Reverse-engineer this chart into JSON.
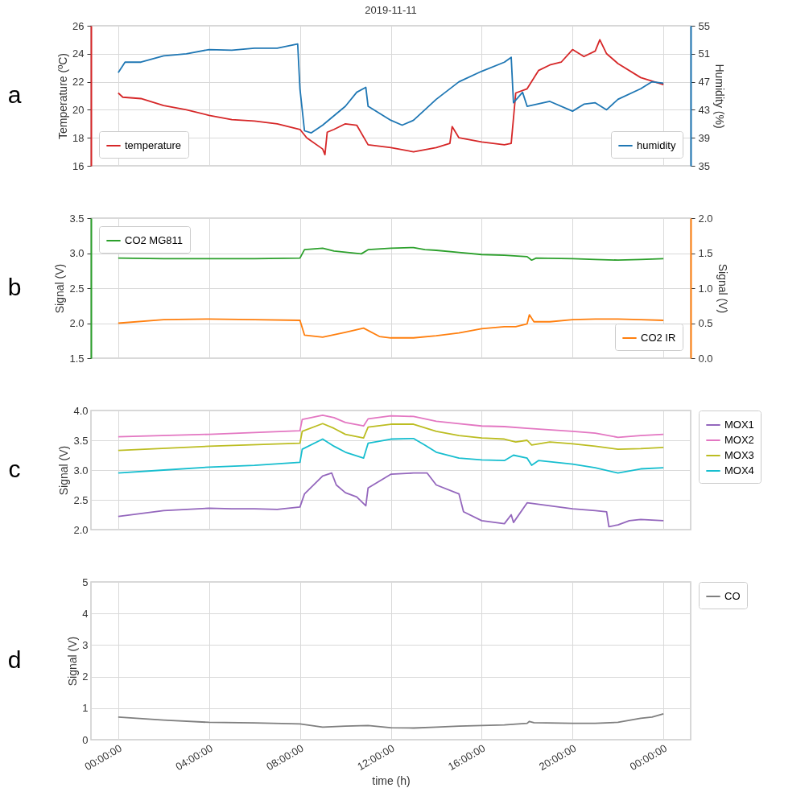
{
  "chart_data": [
    {
      "type": "line",
      "title": "2019-11-11",
      "ylabel": "Temperature (ºC)",
      "y2label": "Humidity (%)",
      "annotations": [
        "a"
      ],
      "grid": true,
      "tick_labels": "y",
      "legend": "bottom",
      "xlim": [
        "2019-11-10T22:48",
        "2019-11-12T01:12"
      ],
      "xticks": [
        "2019-11-11T00:00",
        "2019-11-11T04:00",
        "2019-11-11T08:00",
        "2019-11-11T12:00",
        "2019-11-11T16:00",
        "2019-11-11T20:00",
        "2019-11-12T00:00"
      ],
      "ylim": [
        16,
        26
      ],
      "yticks": [
        16,
        18,
        20,
        22,
        24,
        26
      ],
      "y2lim": [
        35,
        55
      ],
      "y2ticks": [
        35,
        39,
        43,
        47,
        51,
        55
      ],
      "series": [
        {
          "name": "temperature",
          "color": "#d62728",
          "x": [
            "2019-11-11T00:00",
            "2019-11-11T00:12",
            "2019-11-11T01:00",
            "2019-11-11T02:00",
            "2019-11-11T03:00",
            "2019-11-11T04:00",
            "2019-11-11T05:00",
            "2019-11-11T06:00",
            "2019-11-11T07:00",
            "2019-11-11T08:00",
            "2019-11-11T08:18",
            "2019-11-11T09:00",
            "2019-11-11T09:06",
            "2019-11-11T09:12",
            "2019-11-11T09:30",
            "2019-11-11T10:00",
            "2019-11-11T10:30",
            "2019-11-11T11:00",
            "2019-11-11T12:00",
            "2019-11-11T13:00",
            "2019-11-11T14:00",
            "2019-11-11T14:36",
            "2019-11-11T14:42",
            "2019-11-11T15:00",
            "2019-11-11T16:00",
            "2019-11-11T17:00",
            "2019-11-11T17:18",
            "2019-11-11T17:30",
            "2019-11-11T18:00",
            "2019-11-11T18:30",
            "2019-11-11T19:00",
            "2019-11-11T19:30",
            "2019-11-11T20:00",
            "2019-11-11T20:30",
            "2019-11-11T21:00",
            "2019-11-11T21:12",
            "2019-11-11T21:30",
            "2019-11-11T22:00",
            "2019-11-11T23:00",
            "2019-11-12T00:00"
          ],
          "values": [
            21.2,
            20.9,
            20.8,
            20.3,
            20.0,
            19.6,
            19.3,
            19.2,
            19.0,
            18.6,
            18.0,
            17.2,
            16.8,
            18.4,
            18.6,
            19.0,
            18.9,
            17.5,
            17.3,
            17.0,
            17.3,
            17.6,
            18.8,
            18.0,
            17.7,
            17.5,
            17.6,
            21.2,
            21.5,
            22.8,
            23.2,
            23.4,
            24.3,
            23.8,
            24.2,
            25.0,
            24.0,
            23.3,
            22.3,
            21.8
          ]
        },
        {
          "name": "humidity",
          "color": "#1f77b4",
          "axis": "y2",
          "x": [
            "2019-11-11T00:00",
            "2019-11-11T00:18",
            "2019-11-11T01:00",
            "2019-11-11T02:00",
            "2019-11-11T03:00",
            "2019-11-11T04:00",
            "2019-11-11T05:00",
            "2019-11-11T06:00",
            "2019-11-11T07:00",
            "2019-11-11T07:54",
            "2019-11-11T08:00",
            "2019-11-11T08:12",
            "2019-11-11T08:30",
            "2019-11-11T09:00",
            "2019-11-11T10:00",
            "2019-11-11T10:30",
            "2019-11-11T10:54",
            "2019-11-11T11:00",
            "2019-11-11T12:00",
            "2019-11-11T12:30",
            "2019-11-11T13:00",
            "2019-11-11T14:00",
            "2019-11-11T15:00",
            "2019-11-11T16:00",
            "2019-11-11T17:00",
            "2019-11-11T17:18",
            "2019-11-11T17:24",
            "2019-11-11T17:48",
            "2019-11-11T18:00",
            "2019-11-11T19:00",
            "2019-11-11T20:00",
            "2019-11-11T20:30",
            "2019-11-11T21:00",
            "2019-11-11T21:30",
            "2019-11-11T22:00",
            "2019-11-11T23:00",
            "2019-11-11T23:30",
            "2019-11-12T00:00"
          ],
          "values": [
            48.3,
            49.8,
            49.8,
            50.7,
            51.0,
            51.6,
            51.5,
            51.8,
            51.8,
            52.4,
            46,
            40,
            39.7,
            40.8,
            43.5,
            45.5,
            46.2,
            43.5,
            41.5,
            40.8,
            41.5,
            44.5,
            47.0,
            48.5,
            49.8,
            50.5,
            44,
            45.5,
            43.5,
            44.2,
            42.8,
            43.8,
            44.0,
            43.0,
            44.5,
            46.0,
            47.0,
            46.8
          ]
        }
      ]
    },
    {
      "type": "line",
      "ylabel": "Signal (V)",
      "y2label": "Signal (V)",
      "annotations": [
        "b"
      ],
      "grid": true,
      "tick_labels": "y",
      "legend": "left",
      "xlim": [
        "2019-11-10T22:48",
        "2019-11-12T01:12"
      ],
      "xticks": [
        "2019-11-11T00:00",
        "2019-11-11T04:00",
        "2019-11-11T08:00",
        "2019-11-11T12:00",
        "2019-11-11T16:00",
        "2019-11-11T20:00",
        "2019-11-12T00:00"
      ],
      "ylim": [
        1.5,
        3.5
      ],
      "yticks": [
        1.5,
        {
          "value": 2,
          "label": "2.0"
        },
        2.5,
        {
          "value": 3,
          "label": "3.0"
        },
        3.5
      ],
      "y2lim": [
        0,
        2
      ],
      "y2ticks": [
        {
          "value": 0,
          "label": "0.0"
        },
        0.5,
        {
          "value": 1,
          "label": "1.0"
        },
        1.5,
        {
          "value": 2,
          "label": "2.0"
        }
      ],
      "series": [
        {
          "name": "CO2 MG811",
          "color": "#2ca02c",
          "x": [
            "2019-11-11T00:00",
            "2019-11-11T02:00",
            "2019-11-11T04:00",
            "2019-11-11T06:00",
            "2019-11-11T08:00",
            "2019-11-11T08:12",
            "2019-11-11T09:00",
            "2019-11-11T09:30",
            "2019-11-11T10:42",
            "2019-11-11T11:00",
            "2019-11-11T12:00",
            "2019-11-11T13:00",
            "2019-11-11T13:30",
            "2019-11-11T14:00",
            "2019-11-11T15:00",
            "2019-11-11T16:00",
            "2019-11-11T17:00",
            "2019-11-11T18:00",
            "2019-11-11T18:12",
            "2019-11-11T18:24",
            "2019-11-11T20:00",
            "2019-11-11T21:00",
            "2019-11-11T22:00",
            "2019-11-11T23:00",
            "2019-11-12T00:00"
          ],
          "values": [
            2.93,
            2.92,
            2.92,
            2.92,
            2.93,
            3.05,
            3.07,
            3.03,
            2.99,
            3.05,
            3.07,
            3.08,
            3.05,
            3.04,
            3.01,
            2.98,
            2.97,
            2.95,
            2.9,
            2.93,
            2.92,
            2.91,
            2.9,
            2.91,
            2.92
          ]
        },
        {
          "name": "CO2 IR",
          "color": "#ff7f0e",
          "axis": "y2",
          "x": [
            "2019-11-11T00:00",
            "2019-11-11T02:00",
            "2019-11-11T04:00",
            "2019-11-11T06:00",
            "2019-11-11T08:00",
            "2019-11-11T08:12",
            "2019-11-11T09:00",
            "2019-11-11T10:00",
            "2019-11-11T10:48",
            "2019-11-11T11:30",
            "2019-11-11T12:00",
            "2019-11-11T13:00",
            "2019-11-11T14:00",
            "2019-11-11T15:00",
            "2019-11-11T16:00",
            "2019-11-11T17:00",
            "2019-11-11T17:30",
            "2019-11-11T18:00",
            "2019-11-11T18:06",
            "2019-11-11T18:18",
            "2019-11-11T19:00",
            "2019-11-11T20:00",
            "2019-11-11T21:00",
            "2019-11-11T22:00",
            "2019-11-11T23:00",
            "2019-11-12T00:00"
          ],
          "values": [
            0.5,
            0.55,
            0.56,
            0.55,
            0.54,
            0.33,
            0.3,
            0.37,
            0.43,
            0.31,
            0.29,
            0.29,
            0.32,
            0.36,
            0.42,
            0.45,
            0.45,
            0.49,
            0.62,
            0.52,
            0.52,
            0.55,
            0.56,
            0.56,
            0.55,
            0.54
          ]
        }
      ]
    },
    {
      "type": "line",
      "ylabel": "Signal (V)",
      "annotations": [
        "c"
      ],
      "grid": true,
      "tick_labels": "y",
      "legend": "right",
      "xlim": [
        "2019-11-10T22:48",
        "2019-11-12T01:12"
      ],
      "xticks": [
        "2019-11-11T00:00",
        "2019-11-11T04:00",
        "2019-11-11T08:00",
        "2019-11-11T12:00",
        "2019-11-11T16:00",
        "2019-11-11T20:00",
        "2019-11-12T00:00"
      ],
      "ylim": [
        2,
        4
      ],
      "yticks": [
        {
          "value": 2,
          "label": "2.0"
        },
        2.5,
        {
          "value": 3,
          "label": "3.0"
        },
        3.5,
        {
          "value": 4,
          "label": "4.0"
        }
      ],
      "series": [
        {
          "name": "MOX1",
          "color": "#9467bd",
          "x": [
            "2019-11-11T00:00",
            "2019-11-11T02:00",
            "2019-11-11T04:00",
            "2019-11-11T05:00",
            "2019-11-11T06:00",
            "2019-11-11T07:00",
            "2019-11-11T08:00",
            "2019-11-11T08:12",
            "2019-11-11T09:00",
            "2019-11-11T09:24",
            "2019-11-11T09:36",
            "2019-11-11T10:00",
            "2019-11-11T10:30",
            "2019-11-11T10:54",
            "2019-11-11T11:00",
            "2019-11-11T12:00",
            "2019-11-11T13:00",
            "2019-11-11T13:36",
            "2019-11-11T14:00",
            "2019-11-11T15:00",
            "2019-11-11T15:12",
            "2019-11-11T16:00",
            "2019-11-11T17:00",
            "2019-11-11T17:18",
            "2019-11-11T17:24",
            "2019-11-11T18:00",
            "2019-11-11T19:00",
            "2019-11-11T20:00",
            "2019-11-11T21:00",
            "2019-11-11T21:30",
            "2019-11-11T21:36",
            "2019-11-11T22:00",
            "2019-11-11T22:30",
            "2019-11-11T23:00",
            "2019-11-12T00:00"
          ],
          "values": [
            2.22,
            2.32,
            2.36,
            2.35,
            2.35,
            2.34,
            2.38,
            2.6,
            2.9,
            2.95,
            2.75,
            2.62,
            2.55,
            2.4,
            2.7,
            2.93,
            2.95,
            2.95,
            2.75,
            2.6,
            2.3,
            2.15,
            2.1,
            2.25,
            2.12,
            2.45,
            2.4,
            2.35,
            2.32,
            2.3,
            2.05,
            2.08,
            2.15,
            2.17,
            2.15
          ]
        },
        {
          "name": "MOX2",
          "color": "#e377c2",
          "x": [
            "2019-11-11T00:00",
            "2019-11-11T04:00",
            "2019-11-11T08:00",
            "2019-11-11T08:06",
            "2019-11-11T09:00",
            "2019-11-11T09:30",
            "2019-11-11T10:00",
            "2019-11-11T10:48",
            "2019-11-11T11:00",
            "2019-11-11T12:00",
            "2019-11-11T13:00",
            "2019-11-11T14:00",
            "2019-11-11T15:00",
            "2019-11-11T16:00",
            "2019-11-11T17:00",
            "2019-11-11T18:00",
            "2019-11-11T20:00",
            "2019-11-11T21:00",
            "2019-11-11T22:00",
            "2019-11-11T23:00",
            "2019-11-12T00:00"
          ],
          "values": [
            3.56,
            3.6,
            3.66,
            3.85,
            3.92,
            3.88,
            3.8,
            3.74,
            3.86,
            3.91,
            3.9,
            3.82,
            3.78,
            3.74,
            3.73,
            3.7,
            3.65,
            3.62,
            3.55,
            3.58,
            3.6
          ]
        },
        {
          "name": "MOX3",
          "color": "#bcbd22",
          "x": [
            "2019-11-11T00:00",
            "2019-11-11T04:00",
            "2019-11-11T08:00",
            "2019-11-11T08:06",
            "2019-11-11T09:00",
            "2019-11-11T09:30",
            "2019-11-11T10:00",
            "2019-11-11T10:48",
            "2019-11-11T11:00",
            "2019-11-11T12:00",
            "2019-11-11T13:00",
            "2019-11-11T14:00",
            "2019-11-11T15:00",
            "2019-11-11T16:00",
            "2019-11-11T17:00",
            "2019-11-11T17:30",
            "2019-11-11T18:00",
            "2019-11-11T18:12",
            "2019-11-11T19:00",
            "2019-11-11T20:00",
            "2019-11-11T21:00",
            "2019-11-11T22:00",
            "2019-11-11T23:00",
            "2019-11-12T00:00"
          ],
          "values": [
            3.33,
            3.4,
            3.45,
            3.65,
            3.78,
            3.7,
            3.6,
            3.54,
            3.72,
            3.77,
            3.77,
            3.65,
            3.58,
            3.54,
            3.52,
            3.47,
            3.5,
            3.42,
            3.47,
            3.44,
            3.4,
            3.35,
            3.36,
            3.38
          ]
        },
        {
          "name": "MOX4",
          "color": "#17becf",
          "x": [
            "2019-11-11T00:00",
            "2019-11-11T02:00",
            "2019-11-11T04:00",
            "2019-11-11T06:00",
            "2019-11-11T08:00",
            "2019-11-11T08:06",
            "2019-11-11T09:00",
            "2019-11-11T09:30",
            "2019-11-11T10:00",
            "2019-11-11T10:48",
            "2019-11-11T11:00",
            "2019-11-11T12:00",
            "2019-11-11T13:00",
            "2019-11-11T13:30",
            "2019-11-11T14:00",
            "2019-11-11T15:00",
            "2019-11-11T16:00",
            "2019-11-11T17:00",
            "2019-11-11T17:24",
            "2019-11-11T18:00",
            "2019-11-11T18:12",
            "2019-11-11T18:30",
            "2019-11-11T20:00",
            "2019-11-11T21:00",
            "2019-11-11T22:00",
            "2019-11-11T23:00",
            "2019-11-12T00:00"
          ],
          "values": [
            2.95,
            3.0,
            3.05,
            3.08,
            3.13,
            3.35,
            3.52,
            3.4,
            3.3,
            3.2,
            3.45,
            3.52,
            3.53,
            3.42,
            3.3,
            3.2,
            3.17,
            3.16,
            3.25,
            3.2,
            3.08,
            3.16,
            3.1,
            3.04,
            2.95,
            3.02,
            3.04
          ]
        }
      ]
    },
    {
      "type": "line",
      "ylabel": "Signal (V)",
      "xlabel": "time (h)",
      "annotations": [
        "d"
      ],
      "grid": true,
      "legend": "right",
      "xlim": [
        "2019-11-10T22:48",
        "2019-11-12T01:12"
      ],
      "xticks": [
        {
          "value": "2019-11-11T00:00",
          "label": "00:00:00"
        },
        {
          "value": "2019-11-11T04:00",
          "label": "04:00:00"
        },
        {
          "value": "2019-11-11T08:00",
          "label": "08:00:00"
        },
        {
          "value": "2019-11-11T12:00",
          "label": "12:00:00"
        },
        {
          "value": "2019-11-11T16:00",
          "label": "16:00:00"
        },
        {
          "value": "2019-11-11T20:00",
          "label": "20:00:00"
        },
        {
          "value": "2019-11-12T00:00",
          "label": "00:00:00"
        }
      ],
      "ylim": [
        0,
        5
      ],
      "yticks": [
        0,
        1,
        2,
        3,
        4,
        5
      ],
      "series": [
        {
          "name": "CO",
          "color": "#7f7f7f",
          "x": [
            "2019-11-11T00:00",
            "2019-11-11T02:00",
            "2019-11-11T04:00",
            "2019-11-11T06:00",
            "2019-11-11T08:00",
            "2019-11-11T09:00",
            "2019-11-11T10:00",
            "2019-11-11T11:00",
            "2019-11-11T12:00",
            "2019-11-11T13:00",
            "2019-11-11T14:00",
            "2019-11-11T15:00",
            "2019-11-11T16:00",
            "2019-11-11T17:00",
            "2019-11-11T18:00",
            "2019-11-11T18:06",
            "2019-11-11T18:18",
            "2019-11-11T20:00",
            "2019-11-11T21:00",
            "2019-11-11T22:00",
            "2019-11-11T23:00",
            "2019-11-11T23:30",
            "2019-11-12T00:00"
          ],
          "values": [
            0.72,
            0.62,
            0.55,
            0.53,
            0.5,
            0.4,
            0.43,
            0.45,
            0.38,
            0.37,
            0.4,
            0.43,
            0.45,
            0.47,
            0.52,
            0.58,
            0.54,
            0.52,
            0.52,
            0.55,
            0.68,
            0.72,
            0.82
          ]
        }
      ]
    }
  ]
}
